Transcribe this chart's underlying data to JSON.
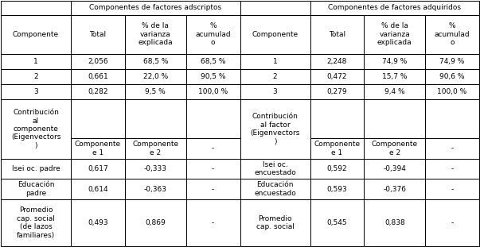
{
  "title_left": "Componentes de factores adscriptos",
  "title_right": "Componentes de factores adquiridos",
  "header_row": [
    "Componente",
    "Total",
    "% de la\nvarianza\nexplicada",
    "%\nacumulad\no",
    "Componente",
    "Total",
    "% de la\nvarianza\nexplicada",
    "%\nacumulad\no"
  ],
  "data_rows": [
    [
      "1",
      "2,056",
      "68,5 %",
      "68,5 %",
      "1",
      "2,248",
      "74,9 %",
      "74,9 %"
    ],
    [
      "2",
      "0,661",
      "22,0 %",
      "90,5 %",
      "2",
      "0,472",
      "15,7 %",
      "90,6 %"
    ],
    [
      "3",
      "0,282",
      "9,5 %",
      "100,0 %",
      "3",
      "0,279",
      "9,4 %",
      "100,0 %"
    ]
  ],
  "contrib_left_label": "Contribución\nal\ncomponente\n(Eigenvectors\n)",
  "contrib_right_label": "Contribución\nal factor\n(Eigenvectors\n)",
  "eigenvec_sub_left": [
    "Componente\ne 1",
    "Componente\ne 2",
    "-"
  ],
  "eigenvec_sub_right": [
    "Componente\ne 1",
    "Componente\ne 2",
    "-"
  ],
  "eigenvec_data_left": [
    [
      "Isei oc. padre",
      "0,617",
      "-0,333",
      "-"
    ],
    [
      "Educación\npadre",
      "0,614",
      "-0,363",
      "-"
    ],
    [
      "Promedio\ncap. social\n(de lazos\nfamiliares)",
      "0,493",
      "0,869",
      "-"
    ]
  ],
  "eigenvec_data_right": [
    [
      "Isei oc.\nencuestado",
      "0,592",
      "-0,394",
      "-"
    ],
    [
      "Educación\nencuestado",
      "0,593",
      "-0,376",
      "-"
    ],
    [
      "Promedio\ncap. social",
      "0,545",
      "0,838",
      "-"
    ]
  ],
  "bg_color": "#ffffff",
  "font_size": 6.5,
  "col_widths_raw": [
    78,
    60,
    68,
    60,
    78,
    60,
    68,
    60
  ],
  "row_heights_raw": [
    14,
    38,
    15,
    15,
    15,
    38,
    20,
    20,
    20,
    46
  ]
}
